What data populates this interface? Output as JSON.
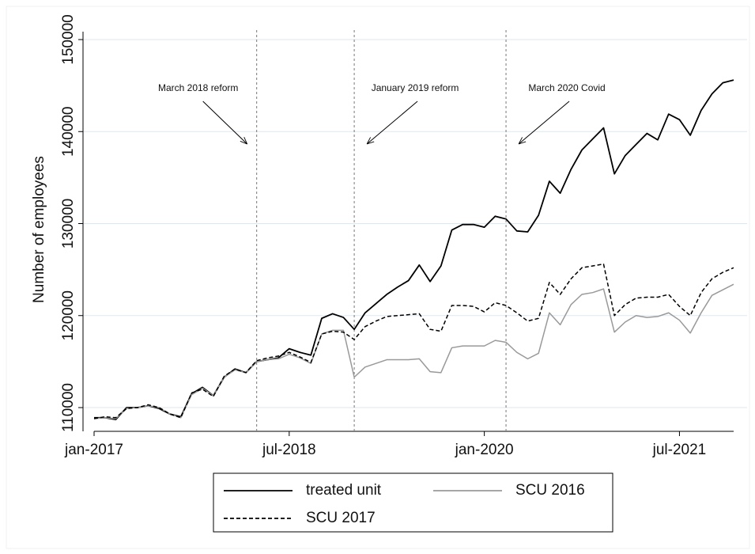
{
  "chart_data": {
    "type": "line",
    "y_label": "Number of employees",
    "categories": [
      "jan-2017",
      null,
      null,
      null,
      null,
      null,
      null,
      null,
      null,
      null,
      null,
      null,
      null,
      null,
      null,
      null,
      null,
      null,
      "jul-2018",
      null,
      null,
      null,
      null,
      null,
      null,
      null,
      null,
      null,
      null,
      null,
      null,
      null,
      null,
      null,
      null,
      null,
      "jan-2020",
      null,
      null,
      null,
      null,
      null,
      null,
      null,
      null,
      null,
      null,
      null,
      null,
      null,
      null,
      null,
      null,
      null,
      "jul-2021",
      null,
      null,
      null,
      null,
      null
    ],
    "series": [
      {
        "name": "treated unit",
        "color": "#000000",
        "dash": false,
        "values": [
          108900,
          108900,
          108700,
          110000,
          110000,
          110200,
          109900,
          109300,
          109000,
          111500,
          112200,
          111300,
          113300,
          114200,
          113800,
          115000,
          115200,
          115400,
          116400,
          116000,
          115700,
          119700,
          120200,
          119800,
          118500,
          120300,
          121300,
          122300,
          123100,
          123800,
          125500,
          123700,
          125400,
          129300,
          129900,
          129900,
          129600,
          130800,
          130500,
          129200,
          129100,
          130900,
          134600,
          133300,
          135900,
          138000,
          139200,
          140400,
          135400,
          137400,
          138600,
          139800,
          139100,
          141900,
          141300,
          139600,
          142300,
          144100,
          145300,
          145600
        ]
      },
      {
        "name": "SCU 2016",
        "color": "#999999",
        "dash": false,
        "values": [
          108800,
          108900,
          108800,
          109900,
          110000,
          110200,
          110000,
          109300,
          108900,
          111400,
          112100,
          111300,
          113300,
          114100,
          113800,
          115000,
          115200,
          115300,
          115800,
          115400,
          114800,
          118000,
          118400,
          118400,
          113300,
          114400,
          114800,
          115200,
          115200,
          115200,
          115300,
          113900,
          113800,
          116500,
          116700,
          116700,
          116700,
          117300,
          117100,
          116000,
          115300,
          115900,
          120300,
          119000,
          121200,
          122300,
          122500,
          122900,
          118200,
          119300,
          120000,
          119800,
          119900,
          120300,
          119500,
          118100,
          120300,
          122200,
          122800,
          123400
        ]
      },
      {
        "name": "SCU 2017",
        "color": "#000000",
        "dash": true,
        "values": [
          108800,
          109000,
          108900,
          109900,
          110000,
          110300,
          110000,
          109300,
          108900,
          111600,
          112000,
          111200,
          113400,
          114200,
          113800,
          115100,
          115400,
          115600,
          116000,
          115500,
          114900,
          118000,
          118300,
          118200,
          117400,
          118800,
          119400,
          119900,
          120000,
          120100,
          120200,
          118500,
          118300,
          121100,
          121100,
          121000,
          120400,
          121400,
          121100,
          120300,
          119400,
          119700,
          123600,
          122300,
          124000,
          125200,
          125400,
          125600,
          120000,
          121200,
          121900,
          122000,
          122000,
          122300,
          121000,
          120000,
          122500,
          124000,
          124700,
          125200
        ]
      }
    ],
    "ylim": [
      110000,
      150000
    ],
    "yticks": [
      110000,
      120000,
      130000,
      140000,
      150000
    ],
    "grid": true,
    "annotations": [
      {
        "x": 15,
        "label": "March 2018 reform"
      },
      {
        "x": 24,
        "label": "January 2019 reform"
      },
      {
        "x": 38,
        "label": "March 2020 Covid"
      }
    ],
    "legend": "bottom"
  }
}
